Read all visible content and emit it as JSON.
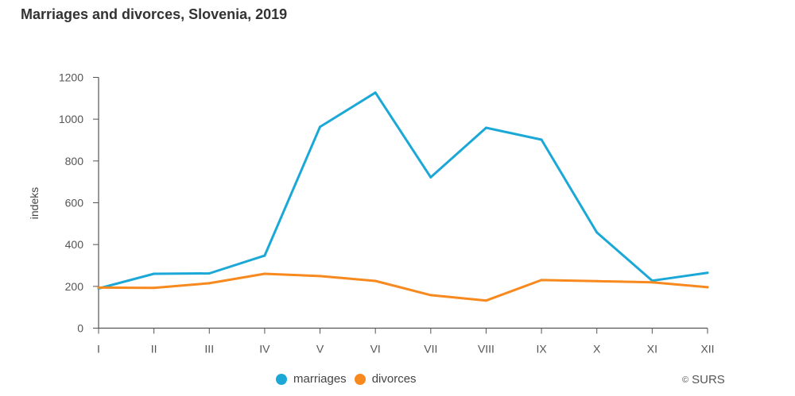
{
  "chart_data": {
    "type": "line",
    "title": "Marriages and divorces, Slovenia, 2019",
    "xlabel": "",
    "ylabel": "indeks",
    "categories": [
      "I",
      "II",
      "III",
      "IV",
      "V",
      "VI",
      "VII",
      "VIII",
      "IX",
      "X",
      "XI",
      "XII"
    ],
    "ylim": [
      0,
      1200
    ],
    "yticks": [
      0,
      200,
      400,
      600,
      800,
      1000,
      1200
    ],
    "grid": false,
    "legend_position": "bottom",
    "series": [
      {
        "name": "marriages",
        "color": "#1ba8d6",
        "values": [
          190,
          260,
          262,
          347,
          963,
          1127,
          722,
          959,
          902,
          458,
          227,
          265
        ]
      },
      {
        "name": "divorces",
        "color": "#f7891f",
        "values": [
          194,
          193,
          215,
          260,
          249,
          226,
          158,
          132,
          230,
          225,
          219,
          196
        ]
      }
    ]
  },
  "credit": {
    "icon": "copyright-icon",
    "text": "SURS"
  }
}
